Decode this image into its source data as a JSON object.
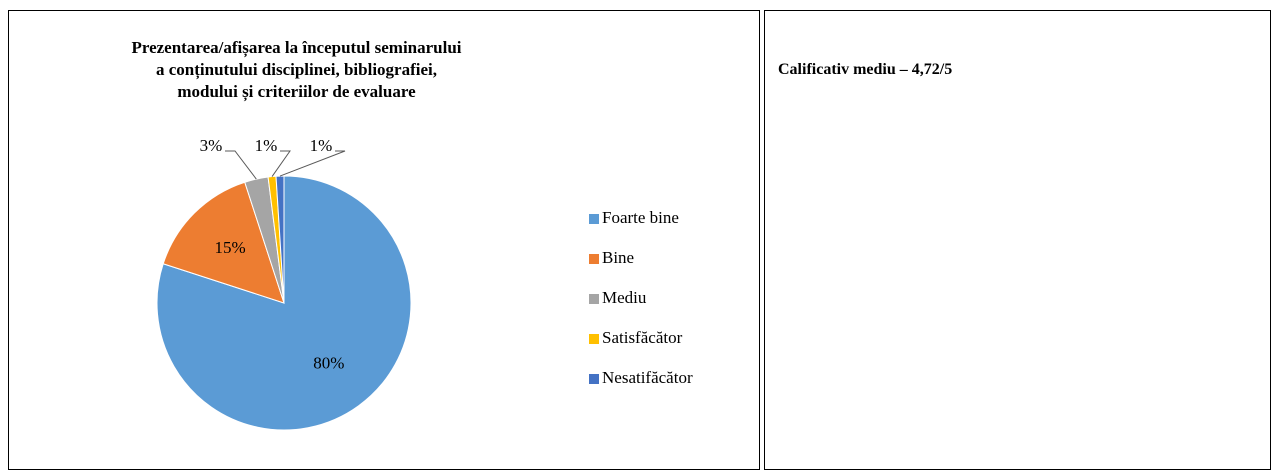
{
  "chart_data": {
    "type": "pie",
    "title": "Prezentarea/afișarea la începutul seminarului a conținutului disciplinei, bibliografiei, modului și criteriilor de evaluare",
    "categories": [
      "Foarte bine",
      "Bine",
      "Mediu",
      "Satisfăcător",
      "Nesatifăcător"
    ],
    "values": [
      80,
      15,
      3,
      1,
      1
    ],
    "value_labels": [
      "80%",
      "15%",
      "3%",
      "1%",
      "1%"
    ],
    "colors": [
      "#5b9bd5",
      "#ed7d31",
      "#a5a5a5",
      "#ffc000",
      "#4472c4"
    ],
    "legend": "right"
  },
  "summary": "Calificativ mediu – 4,72/5"
}
